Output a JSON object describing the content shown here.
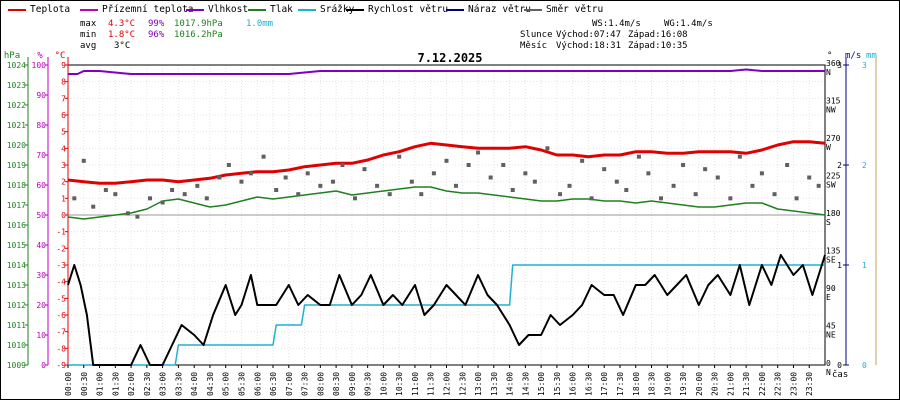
{
  "legend": [
    {
      "label": "Teplota",
      "color": "#e00000"
    },
    {
      "label": "Přízemní teplota",
      "color": "#c000c0"
    },
    {
      "label": "Vlhkost",
      "color": "#8000c0"
    },
    {
      "label": "Tlak",
      "color": "#208020"
    },
    {
      "label": "Srážky",
      "color": "#20b0d0"
    },
    {
      "label": "Rychlost větru",
      "color": "#000000"
    },
    {
      "label": "Náraz větru",
      "color": "#000080"
    },
    {
      "label": "Směr větru",
      "color": "#606060"
    }
  ],
  "stats": {
    "max": {
      "label": "max",
      "temp": "4.3°C",
      "hum": "99%",
      "press": "1017.9hPa",
      "rain": "1.0mm"
    },
    "min": {
      "label": "min",
      "temp": "1.8°C",
      "hum": "96%",
      "press": "1016.2hPa"
    },
    "avg": {
      "label": "avg",
      "temp": "3°C"
    }
  },
  "wind_info": {
    "ws": "WS:1.4m/s",
    "wg": "WG:1.4m/s"
  },
  "sun": {
    "label": "Slunce",
    "rise": "Východ:07:47",
    "set": "Západ:16:08"
  },
  "moon": {
    "label": "Měsíc",
    "rise": "Východ:18:31",
    "set": "Západ:10:35"
  },
  "chart_data": {
    "type": "line",
    "title": "7.12.2025",
    "xlabel": "čas",
    "axes": {
      "hpa": {
        "label": "hPa",
        "ticks": [
          1009,
          1010,
          1011,
          1012,
          1013,
          1014,
          1015,
          1016,
          1017,
          1018,
          1019,
          1020,
          1021,
          1022,
          1023,
          1024
        ]
      },
      "percent": {
        "label": "%",
        "ticks": [
          0,
          10,
          20,
          30,
          40,
          50,
          60,
          70,
          80,
          90,
          100
        ]
      },
      "celsius": {
        "label": "°C",
        "ticks": [
          -9,
          -8,
          -7,
          -6,
          -5,
          -4,
          -3,
          -2,
          -1,
          0,
          1,
          2,
          3,
          4,
          5,
          6,
          7,
          8,
          9
        ]
      },
      "direction": {
        "label": "°",
        "ticks": [
          "0",
          "45",
          "90",
          "135",
          "180",
          "225",
          "270",
          "315",
          "360"
        ],
        "names": [
          "N",
          "NE",
          "E",
          "SE",
          "S",
          "SW",
          "W",
          "NW",
          "N"
        ]
      },
      "wind": {
        "label": "m/s",
        "ticks": [
          0,
          1,
          2,
          3
        ]
      },
      "rain": {
        "label": "mm",
        "ticks": [
          0,
          1,
          2,
          3
        ]
      }
    },
    "x_ticks": [
      "00:00",
      "00:30",
      "01:00",
      "01:30",
      "02:00",
      "02:30",
      "03:00",
      "03:30",
      "04:00",
      "04:30",
      "05:00",
      "05:30",
      "06:00",
      "06:30",
      "07:00",
      "07:30",
      "08:00",
      "08:30",
      "09:00",
      "09:30",
      "10:00",
      "10:30",
      "11:00",
      "11:30",
      "12:00",
      "12:30",
      "13:00",
      "13:30",
      "14:00",
      "14:30",
      "15:00",
      "15:30",
      "16:00",
      "16:30",
      "17:00",
      "17:30",
      "18:00",
      "18:30",
      "19:00",
      "19:30",
      "20:00",
      "20:30",
      "21:00",
      "21:30",
      "22:00",
      "22:30",
      "23:00",
      "23:30"
    ],
    "series": [
      {
        "name": "Teplota",
        "unit": "°C",
        "color": "#e00000",
        "x": [
          0,
          0.5,
          1,
          1.5,
          2,
          2.5,
          3,
          3.5,
          4,
          4.5,
          5,
          5.5,
          6,
          6.5,
          7,
          7.5,
          8,
          8.5,
          9,
          9.5,
          10,
          10.5,
          11,
          11.5,
          12,
          12.5,
          13,
          13.5,
          14,
          14.5,
          15,
          15.5,
          16,
          16.5,
          17,
          17.5,
          18,
          18.5,
          19,
          19.5,
          20,
          20.5,
          21,
          21.5,
          22,
          22.5,
          23,
          23.5,
          24
        ],
        "values": [
          2.1,
          2.0,
          1.9,
          1.9,
          2.0,
          2.1,
          2.1,
          2.0,
          2.1,
          2.2,
          2.4,
          2.5,
          2.6,
          2.6,
          2.7,
          2.9,
          3.0,
          3.1,
          3.1,
          3.3,
          3.6,
          3.8,
          4.1,
          4.3,
          4.2,
          4.1,
          4.0,
          4.0,
          4.0,
          4.1,
          3.9,
          3.6,
          3.6,
          3.5,
          3.6,
          3.6,
          3.8,
          3.8,
          3.7,
          3.7,
          3.8,
          3.8,
          3.8,
          3.7,
          3.9,
          4.2,
          4.4,
          4.4,
          4.3
        ]
      },
      {
        "name": "Vlhkost",
        "unit": "%",
        "color": "#8000c0",
        "x": [
          0,
          0.3,
          0.5,
          1,
          2,
          3,
          4,
          5,
          6,
          7,
          8,
          9,
          10,
          11,
          12,
          13,
          14,
          15,
          16,
          17,
          18,
          19,
          20,
          21,
          21.5,
          22,
          23,
          24
        ],
        "values": [
          97,
          97,
          98,
          98,
          97,
          97,
          97,
          97,
          97,
          97,
          98,
          98,
          98,
          98,
          98,
          98,
          98,
          98,
          98,
          98,
          98,
          98,
          98,
          98,
          98.5,
          98,
          98,
          98
        ]
      },
      {
        "name": "Tlak",
        "unit": "hPa",
        "color": "#208020",
        "x": [
          0,
          0.5,
          1,
          1.5,
          2,
          2.5,
          3,
          3.5,
          4,
          4.5,
          5,
          5.5,
          6,
          6.5,
          7,
          7.5,
          8,
          8.5,
          9,
          9.5,
          10,
          10.5,
          11,
          11.5,
          12,
          12.5,
          13,
          13.5,
          14,
          14.5,
          15,
          15.5,
          16,
          16.5,
          17,
          17.5,
          18,
          18.5,
          19,
          19.5,
          20,
          20.5,
          21,
          21.5,
          22,
          22.5,
          23,
          23.5,
          24
        ],
        "values": [
          1016.4,
          1016.3,
          1016.4,
          1016.5,
          1016.6,
          1016.8,
          1017.2,
          1017.3,
          1017.1,
          1016.9,
          1017.0,
          1017.2,
          1017.4,
          1017.3,
          1017.4,
          1017.5,
          1017.6,
          1017.7,
          1017.5,
          1017.6,
          1017.7,
          1017.8,
          1017.9,
          1017.9,
          1017.7,
          1017.6,
          1017.6,
          1017.5,
          1017.4,
          1017.3,
          1017.2,
          1017.2,
          1017.3,
          1017.3,
          1017.2,
          1017.2,
          1017.1,
          1017.2,
          1017.1,
          1017.0,
          1016.9,
          1016.9,
          1017.0,
          1017.1,
          1017.1,
          1016.8,
          1016.7,
          1016.6,
          1016.5
        ]
      },
      {
        "name": "Srážky",
        "unit": "mm",
        "color": "#20b0d0",
        "x": [
          0,
          3.4,
          3.5,
          6.5,
          6.6,
          7.4,
          7.5,
          14,
          14.1,
          21.3,
          21.4,
          24
        ],
        "values": [
          0,
          0,
          0.2,
          0.2,
          0.4,
          0.4,
          0.6,
          0.6,
          1.0,
          1.0,
          1.0,
          1.0
        ]
      },
      {
        "name": "Rychlost větru",
        "unit": "m/s",
        "color": "#000000",
        "x": [
          0,
          0.2,
          0.4,
          0.6,
          0.8,
          1,
          1.5,
          2,
          2.3,
          2.6,
          3,
          3.3,
          3.6,
          4,
          4.3,
          4.6,
          5,
          5.3,
          5.5,
          5.8,
          6,
          6.3,
          6.6,
          7,
          7.3,
          7.6,
          8,
          8.3,
          8.6,
          9,
          9.3,
          9.6,
          10,
          10.3,
          10.6,
          11,
          11.3,
          11.6,
          12,
          12.3,
          12.6,
          13,
          13.3,
          13.6,
          14,
          14.3,
          14.6,
          15,
          15.3,
          15.6,
          16,
          16.3,
          16.6,
          17,
          17.3,
          17.6,
          18,
          18.3,
          18.6,
          19,
          19.3,
          19.6,
          20,
          20.3,
          20.6,
          21,
          21.3,
          21.6,
          22,
          22.3,
          22.6,
          23,
          23.3,
          23.6,
          24
        ],
        "values": [
          0.8,
          1.0,
          0.8,
          0.5,
          0,
          0,
          0,
          0,
          0.2,
          0,
          0,
          0.2,
          0.4,
          0.3,
          0.2,
          0.5,
          0.8,
          0.5,
          0.6,
          0.9,
          0.6,
          0.6,
          0.6,
          0.8,
          0.6,
          0.7,
          0.6,
          0.6,
          0.9,
          0.6,
          0.7,
          0.9,
          0.6,
          0.7,
          0.6,
          0.8,
          0.5,
          0.6,
          0.8,
          0.7,
          0.6,
          0.9,
          0.7,
          0.6,
          0.4,
          0.2,
          0.3,
          0.3,
          0.5,
          0.4,
          0.5,
          0.6,
          0.8,
          0.7,
          0.7,
          0.5,
          0.8,
          0.8,
          0.9,
          0.7,
          0.8,
          0.9,
          0.6,
          0.8,
          0.9,
          0.7,
          1.0,
          0.6,
          1.0,
          0.8,
          1.1,
          0.9,
          1.0,
          0.7,
          1.1
        ]
      },
      {
        "name": "Směr větru",
        "unit": "°",
        "color": "#606060",
        "x": [
          0.2,
          0.5,
          0.8,
          1.2,
          1.5,
          1.9,
          2.2,
          2.6,
          3.0,
          3.3,
          3.7,
          4.1,
          4.4,
          4.8,
          5.1,
          5.5,
          5.8,
          6.2,
          6.6,
          6.9,
          7.3,
          7.6,
          8.0,
          8.4,
          8.7,
          9.1,
          9.4,
          9.8,
          10.2,
          10.5,
          10.9,
          11.2,
          11.6,
          12.0,
          12.3,
          12.7,
          13.0,
          13.4,
          13.8,
          14.1,
          14.5,
          14.8,
          15.2,
          15.6,
          15.9,
          16.3,
          16.6,
          17.0,
          17.4,
          17.7,
          18.1,
          18.4,
          18.8,
          19.2,
          19.5,
          19.9,
          20.2,
          20.6,
          21.0,
          21.3,
          21.7,
          22.0,
          22.4,
          22.8,
          23.1,
          23.5,
          23.8
        ],
        "values": [
          200,
          245,
          190,
          210,
          205,
          182,
          178,
          200,
          195,
          210,
          205,
          215,
          200,
          225,
          240,
          220,
          230,
          250,
          210,
          225,
          205,
          230,
          215,
          220,
          240,
          200,
          235,
          215,
          205,
          250,
          220,
          205,
          230,
          245,
          215,
          240,
          255,
          225,
          240,
          210,
          230,
          220,
          260,
          205,
          215,
          245,
          200,
          235,
          220,
          210,
          250,
          230,
          200,
          215,
          240,
          205,
          235,
          225,
          200,
          250,
          215,
          230,
          205,
          240,
          200,
          225,
          215
        ]
      }
    ]
  }
}
